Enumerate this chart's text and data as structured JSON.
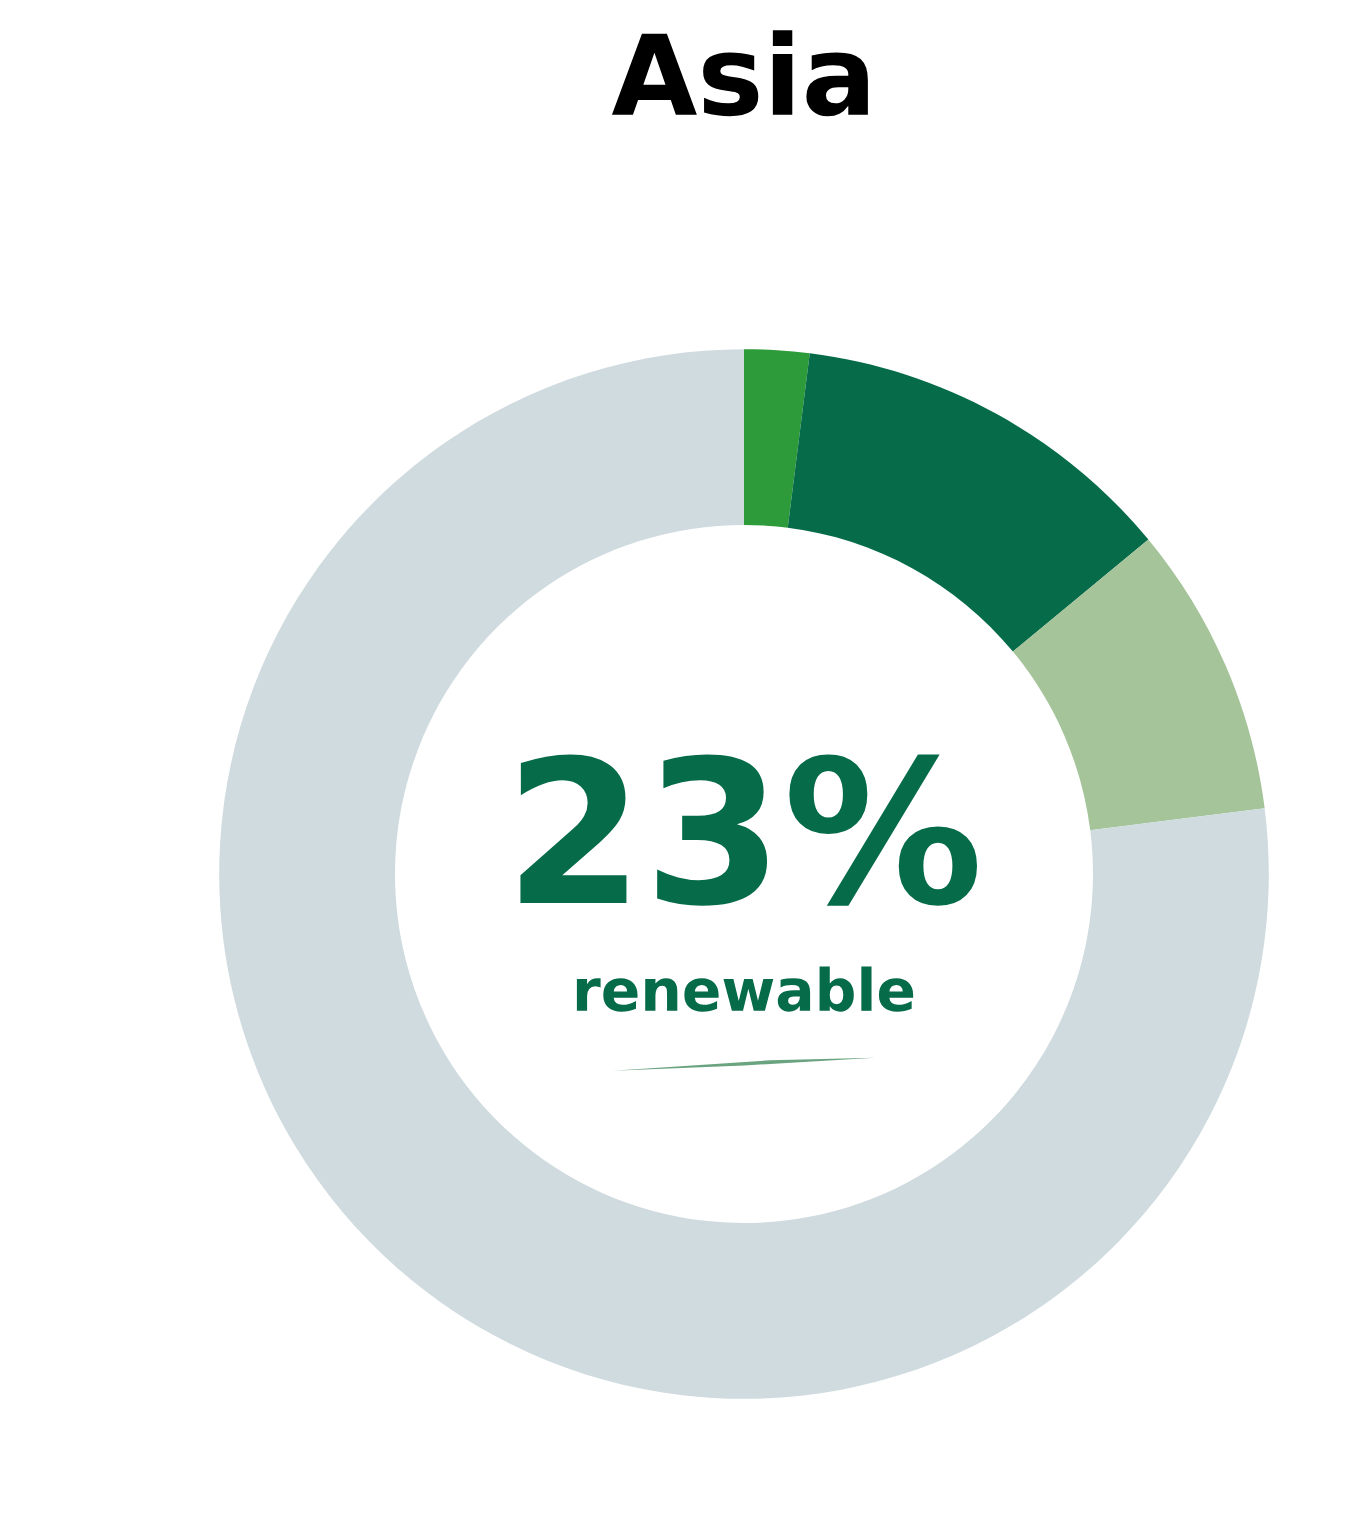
{
  "chart_data": {
    "type": "donut",
    "title": "Asia",
    "categories": [
      null,
      null,
      null,
      null
    ],
    "values": [
      2,
      12,
      9,
      77
    ],
    "colors": [
      "#2e9b3a",
      "#056b48",
      "#a5c49a",
      "#d0dbdf"
    ],
    "annotations": [
      "23%",
      "renewable"
    ],
    "legend": false
  }
}
